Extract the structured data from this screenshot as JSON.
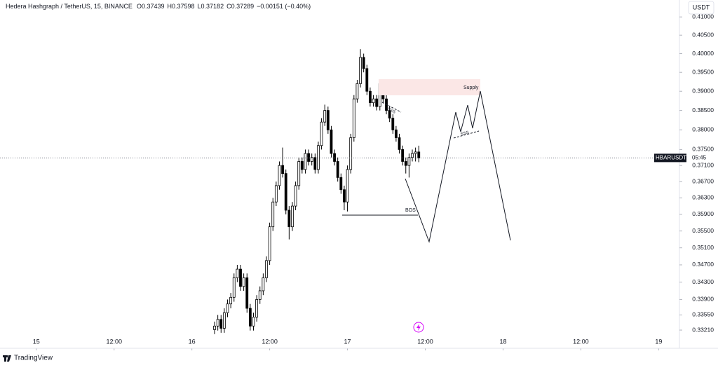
{
  "header": {
    "symbol": "Hedera Hashgraph / TetherUS, 15, BINANCE",
    "ohlc": [
      "O0.37439",
      "H0.37598",
      "L0.37182",
      "C0.37289"
    ],
    "change": "−0.00151 (−0.40%)",
    "currency": "USDT"
  },
  "price_tag": {
    "ticker": "HBARUSDT",
    "countdown": "05:45"
  },
  "annotations": {
    "supply": "Supply",
    "bos": "BOS",
    "sss": [
      "SSS",
      "SSS"
    ]
  },
  "footer": {
    "brand": "TradingView"
  },
  "chart_data": {
    "type": "candlestick",
    "log_scale": true,
    "up_color": "#ffffff",
    "down_color": "#000000",
    "wick_color": "#000000",
    "xlim": [
      -5.6,
      99.1
    ],
    "xticks": [
      {
        "value": 0,
        "label": "15"
      },
      {
        "value": 12,
        "label": "12:00"
      },
      {
        "value": 24,
        "label": "16"
      },
      {
        "value": 36,
        "label": "12:00"
      },
      {
        "value": 48,
        "label": "17"
      },
      {
        "value": 60,
        "label": "12:00"
      },
      {
        "value": 72,
        "label": "18"
      },
      {
        "value": 84,
        "label": "12:00"
      },
      {
        "value": 96,
        "label": "19"
      }
    ],
    "ylim": [
      0.3307,
      0.4147
    ],
    "yticks": [
      {
        "value": 0.41,
        "label": "0.41000"
      },
      {
        "value": 0.405,
        "label": "0.40500"
      },
      {
        "value": 0.4,
        "label": "0.40000"
      },
      {
        "value": 0.395,
        "label": "0.39500"
      },
      {
        "value": 0.39,
        "label": "0.39000"
      },
      {
        "value": 0.385,
        "label": "0.38500"
      },
      {
        "value": 0.38,
        "label": "0.38000"
      },
      {
        "value": 0.375,
        "label": "0.37500"
      },
      {
        "value": 0.371,
        "label": "0.37100"
      },
      {
        "value": 0.367,
        "label": "0.36700"
      },
      {
        "value": 0.363,
        "label": "0.36300"
      },
      {
        "value": 0.359,
        "label": "0.35900"
      },
      {
        "value": 0.355,
        "label": "0.35500"
      },
      {
        "value": 0.351,
        "label": "0.35100"
      },
      {
        "value": 0.347,
        "label": "0.34700"
      },
      {
        "value": 0.343,
        "label": "0.34300"
      },
      {
        "value": 0.339,
        "label": "0.33900"
      },
      {
        "value": 0.3355,
        "label": "0.33550"
      },
      {
        "value": 0.3321,
        "label": "0.33210"
      }
    ],
    "x": [
      27.5,
      28,
      28.5,
      29,
      29.5,
      30,
      30.5,
      31,
      31.5,
      32,
      32.5,
      33,
      33.5,
      34,
      34.5,
      35,
      35.5,
      36,
      36.5,
      37,
      37.5,
      38,
      38.5,
      39,
      39.5,
      40,
      40.5,
      41,
      41.5,
      42,
      42.5,
      43,
      43.5,
      44,
      44.5,
      45,
      45.5,
      46,
      46.5,
      47,
      47.5,
      48,
      48.5,
      49,
      49.5,
      50,
      50.5,
      51,
      51.5,
      52,
      52.5,
      53,
      53.5,
      54,
      54.5,
      55,
      55.5,
      56,
      56.5,
      57,
      57.5,
      58,
      58.5,
      59
    ],
    "open": [
      0.3322,
      0.333,
      0.3345,
      0.3325,
      0.336,
      0.338,
      0.3395,
      0.344,
      0.346,
      0.342,
      0.344,
      0.337,
      0.333,
      0.335,
      0.339,
      0.341,
      0.344,
      0.348,
      0.356,
      0.362,
      0.366,
      0.371,
      0.369,
      0.36,
      0.356,
      0.361,
      0.366,
      0.372,
      0.37,
      0.374,
      0.372,
      0.373,
      0.37,
      0.376,
      0.382,
      0.385,
      0.38,
      0.374,
      0.372,
      0.368,
      0.365,
      0.362,
      0.37,
      0.378,
      0.388,
      0.392,
      0.399,
      0.396,
      0.39,
      0.387,
      0.388,
      0.386,
      0.392,
      0.388,
      0.385,
      0.383,
      0.38,
      0.378,
      0.375,
      0.372,
      0.371,
      0.373,
      0.374,
      0.37439
    ],
    "high": [
      0.334,
      0.3355,
      0.3355,
      0.337,
      0.339,
      0.3405,
      0.345,
      0.347,
      0.347,
      0.345,
      0.345,
      0.338,
      0.336,
      0.34,
      0.342,
      0.345,
      0.349,
      0.357,
      0.363,
      0.367,
      0.372,
      0.3755,
      0.37,
      0.361,
      0.362,
      0.367,
      0.373,
      0.373,
      0.375,
      0.375,
      0.374,
      0.374,
      0.377,
      0.383,
      0.3865,
      0.386,
      0.381,
      0.375,
      0.373,
      0.369,
      0.366,
      0.371,
      0.379,
      0.389,
      0.393,
      0.4012,
      0.4,
      0.397,
      0.391,
      0.389,
      0.389,
      0.393,
      0.393,
      0.389,
      0.386,
      0.384,
      0.381,
      0.379,
      0.376,
      0.373,
      0.374,
      0.375,
      0.3755,
      0.37598
    ],
    "low": [
      0.3312,
      0.332,
      0.3315,
      0.3315,
      0.335,
      0.337,
      0.3385,
      0.343,
      0.341,
      0.341,
      0.336,
      0.332,
      0.332,
      0.334,
      0.338,
      0.34,
      0.343,
      0.347,
      0.355,
      0.361,
      0.365,
      0.368,
      0.359,
      0.353,
      0.355,
      0.36,
      0.365,
      0.369,
      0.369,
      0.371,
      0.371,
      0.369,
      0.369,
      0.375,
      0.381,
      0.379,
      0.373,
      0.371,
      0.367,
      0.364,
      0.36,
      0.3597,
      0.369,
      0.377,
      0.387,
      0.391,
      0.395,
      0.389,
      0.386,
      0.386,
      0.385,
      0.385,
      0.387,
      0.384,
      0.382,
      0.379,
      0.377,
      0.374,
      0.371,
      0.369,
      0.368,
      0.372,
      0.372,
      0.37182
    ],
    "close": [
      0.333,
      0.3345,
      0.3325,
      0.336,
      0.338,
      0.3395,
      0.344,
      0.346,
      0.342,
      0.344,
      0.337,
      0.333,
      0.335,
      0.339,
      0.341,
      0.344,
      0.348,
      0.356,
      0.362,
      0.366,
      0.371,
      0.369,
      0.36,
      0.356,
      0.361,
      0.366,
      0.372,
      0.37,
      0.374,
      0.372,
      0.373,
      0.37,
      0.376,
      0.382,
      0.385,
      0.38,
      0.374,
      0.372,
      0.368,
      0.365,
      0.362,
      0.37,
      0.378,
      0.388,
      0.392,
      0.399,
      0.396,
      0.39,
      0.387,
      0.388,
      0.386,
      0.392,
      0.388,
      0.385,
      0.383,
      0.38,
      0.378,
      0.375,
      0.372,
      0.371,
      0.373,
      0.374,
      0.37439,
      0.37289
    ]
  }
}
